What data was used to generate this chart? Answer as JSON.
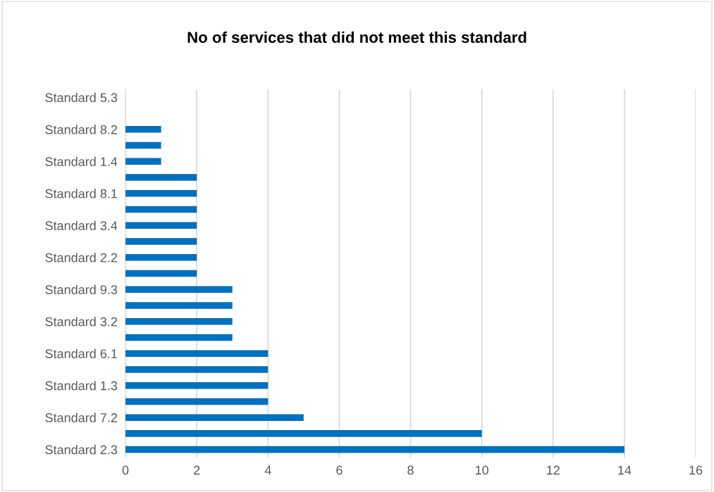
{
  "chart_data": {
    "type": "bar",
    "orientation": "horizontal",
    "title": "No of services that did not meet this standard",
    "categories": [
      "Standard 5.3",
      null,
      "Standard 8.2",
      null,
      "Standard 1.4",
      null,
      "Standard 8.1",
      null,
      "Standard 3.4",
      null,
      "Standard 2.2",
      null,
      "Standard 9.3",
      null,
      "Standard 3.2",
      null,
      "Standard 6.1",
      null,
      "Standard 1.3",
      null,
      "Standard 7.2",
      null,
      "Standard 2.3"
    ],
    "values": [
      0,
      0,
      1,
      1,
      1,
      2,
      2,
      2,
      2,
      2,
      2,
      2,
      3,
      3,
      3,
      3,
      4,
      4,
      4,
      4,
      5,
      10,
      14
    ],
    "color": "#0070c0",
    "xlim": [
      0,
      16
    ],
    "xticks": [
      0,
      2,
      4,
      6,
      8,
      10,
      12,
      14,
      16
    ],
    "grid": "x"
  }
}
